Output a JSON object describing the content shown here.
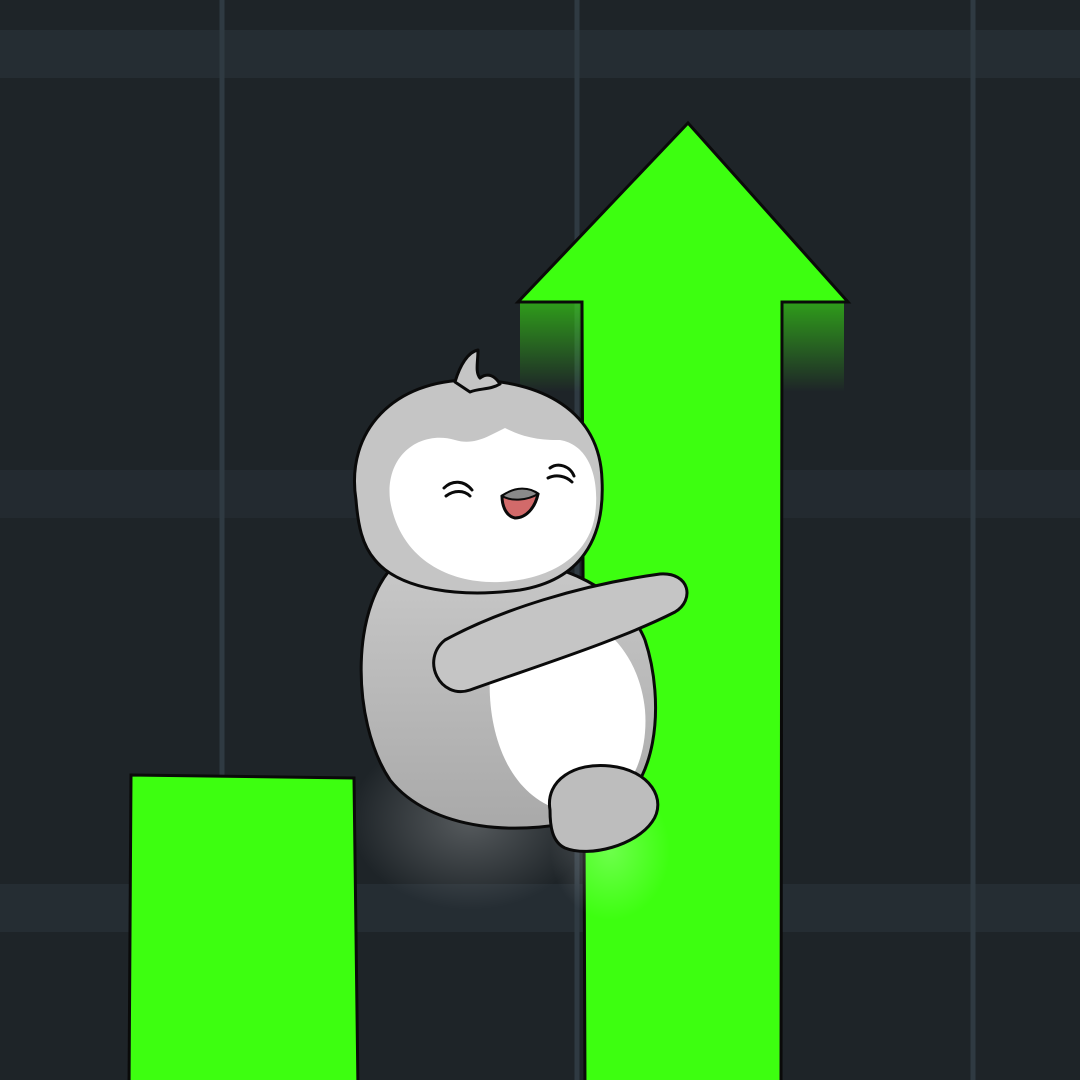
{
  "colors": {
    "background": "#1e2428",
    "grid_band": "#252d33",
    "grid_line": "#2f3a42",
    "bar_green": "#3dff10",
    "outline": "#0a0a0a",
    "penguin_gray": "#c5c5c5",
    "penguin_gray_dark": "#9b9b9b",
    "penguin_white": "#ffffff",
    "mouth": "#d26a6a"
  },
  "illustration": {
    "subject": "penguin-hugging-arrow",
    "bars": [
      {
        "name": "short-bar",
        "relative_height": 0.28
      },
      {
        "name": "arrow-bar",
        "relative_height": 0.89
      }
    ],
    "trend": "up"
  }
}
